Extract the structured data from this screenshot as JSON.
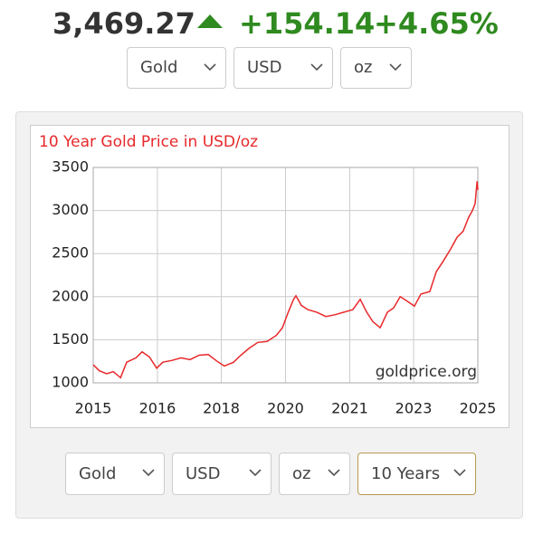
{
  "header": {
    "price": "3,469.27",
    "change": "+154.14",
    "change_pct": "+4.65%"
  },
  "selectors_top": [
    "Gold",
    "USD",
    "oz"
  ],
  "chart_data": {
    "type": "line",
    "title": "10 Year Gold Price in USD/oz",
    "annotation": "goldprice.org",
    "color": "#e8282a",
    "grid": true,
    "x": [
      2015.0,
      2015.16,
      2015.35,
      2015.52,
      2015.71,
      2015.87,
      2016.11,
      2016.27,
      2016.46,
      2016.65,
      2016.81,
      2017.05,
      2017.28,
      2017.52,
      2017.75,
      2017.99,
      2018.22,
      2018.41,
      2018.65,
      2018.81,
      2019.05,
      2019.28,
      2019.52,
      2019.76,
      2019.92,
      2020.07,
      2020.21,
      2020.27,
      2020.41,
      2020.58,
      2020.81,
      2021.05,
      2021.28,
      2021.52,
      2021.75,
      2021.94,
      2022.11,
      2022.27,
      2022.46,
      2022.65,
      2022.81,
      2022.98,
      2023.16,
      2023.35,
      2023.52,
      2023.75,
      2023.92,
      2024.11,
      2024.29,
      2024.46,
      2024.62,
      2024.76,
      2024.86,
      2024.93,
      2024.98,
      2025.0
    ],
    "values": [
      1210,
      1140,
      1105,
      1130,
      1060,
      1240,
      1290,
      1360,
      1300,
      1170,
      1240,
      1260,
      1290,
      1270,
      1320,
      1330,
      1250,
      1195,
      1240,
      1310,
      1400,
      1470,
      1480,
      1550,
      1640,
      1820,
      1970,
      2010,
      1900,
      1850,
      1820,
      1770,
      1790,
      1820,
      1850,
      1970,
      1820,
      1710,
      1640,
      1820,
      1870,
      2000,
      1950,
      1890,
      2030,
      2060,
      2290,
      2420,
      2550,
      2690,
      2760,
      2920,
      3000,
      3080,
      3340,
      3240
    ],
    "xlim": [
      2015,
      2025
    ],
    "xticks": [
      2015,
      {
        "value": 2016.67,
        "label": "2016"
      },
      {
        "value": 2018.33,
        "label": "2018"
      },
      2020,
      {
        "value": 2021.67,
        "label": "2021"
      },
      {
        "value": 2023.33,
        "label": "2023"
      },
      2025
    ],
    "ylim": [
      1000,
      3500
    ],
    "yticks": [
      1000,
      1500,
      2000,
      2500,
      3000,
      3500
    ]
  },
  "selectors_bottom": [
    "Gold",
    "USD",
    "oz",
    "10 Years"
  ]
}
